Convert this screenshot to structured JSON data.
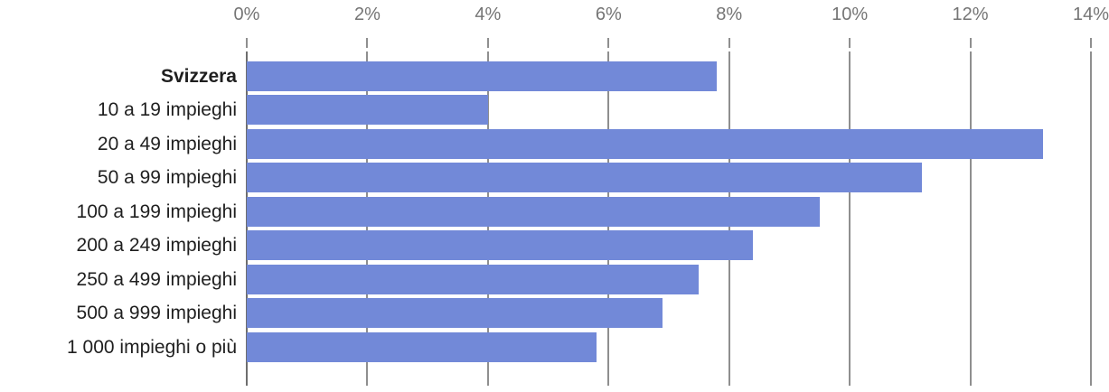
{
  "chart_data": {
    "type": "bar",
    "orientation": "horizontal",
    "title": "",
    "categories": [
      "Svizzera",
      "10 a 19 impieghi",
      "20 a 49 impieghi",
      "50 a 99 impieghi",
      "100 a 199 impieghi",
      "200 a 249 impieghi",
      "250 a 499 impieghi",
      "500 a 999 impieghi",
      "1 000 impieghi o più"
    ],
    "values": [
      7.8,
      4.0,
      13.2,
      11.2,
      9.5,
      8.4,
      7.5,
      6.9,
      5.8
    ],
    "emphasized_category": "Svizzera",
    "unit": "%",
    "x_axis": {
      "position": "top",
      "min": 0,
      "max": 14,
      "tick_values": [
        0,
        2,
        4,
        6,
        8,
        10,
        12,
        14
      ],
      "tick_labels": [
        "0%",
        "2%",
        "4%",
        "6%",
        "8%",
        "10%",
        "12%",
        "14%"
      ]
    },
    "grid": true,
    "legend": false,
    "colors": {
      "bar": "#7289d8",
      "grid_line": "#8f8f8f",
      "zero_line": "#6e6e6e",
      "axis_label": "#757575",
      "category_label": "#1f1f1f",
      "background": "#ffffff"
    }
  }
}
